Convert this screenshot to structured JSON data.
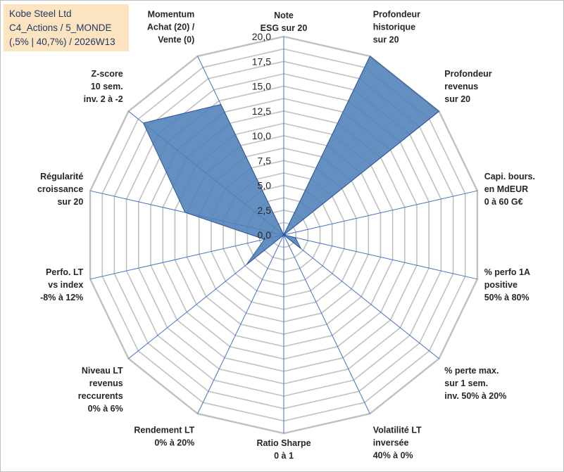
{
  "header": {
    "line1": "Kobe Steel Ltd",
    "line2": "C4_Actions / 5_MONDE",
    "line3": "(,5% | 40,7%) / 2026W13"
  },
  "colors": {
    "grid": "#c0c0c0",
    "axis": "#4472c4",
    "fill": "#4f7fb8",
    "stroke": "#2f5597",
    "header_bg": "#fce4c0",
    "header_text": "#1f3864"
  },
  "chart_data": {
    "type": "radar",
    "title": "",
    "range": [
      0,
      20
    ],
    "ticks": [
      "0,0",
      "2,5",
      "5,0",
      "7,5",
      "10,0",
      "12,5",
      "15,0",
      "17,5",
      "20,0"
    ],
    "categories": [
      [
        "Note",
        "ESG sur 20"
      ],
      [
        "Profondeur",
        "historique",
        "sur 20"
      ],
      [
        "Profondeur",
        "revenus",
        "sur 20"
      ],
      [
        "Capi. bours.",
        "en MdEUR",
        "0 à 60 G€"
      ],
      [
        "% perfo 1A",
        "positive",
        "50% à 80%"
      ],
      [
        "% perte max.",
        "sur 1 sem.",
        "inv. 50% à 20%"
      ],
      [
        "Volatilité LT",
        "inversée",
        "40% à 0%"
      ],
      [
        "Ratio Sharpe",
        "0 à 1"
      ],
      [
        "Rendement LT",
        "0% à 20%"
      ],
      [
        "Niveau LT",
        "revenus",
        "reccurents",
        "0% à 6%"
      ],
      [
        "Perfo. LT",
        "vs index",
        "-8% à 12%"
      ],
      [
        "Régularité",
        "croissance",
        "sur 20"
      ],
      [
        "Z-score",
        "10 sem.",
        "inv. 2 à -2"
      ],
      [
        "Momentum",
        "Achat (20) /",
        "Vente (0)"
      ]
    ],
    "series": [
      {
        "name": "Kobe Steel Ltd",
        "values": [
          0,
          20,
          20,
          0,
          1.2,
          2.2,
          0,
          0,
          0,
          4.8,
          2.0,
          10.2,
          18.1,
          14.6
        ]
      }
    ]
  }
}
